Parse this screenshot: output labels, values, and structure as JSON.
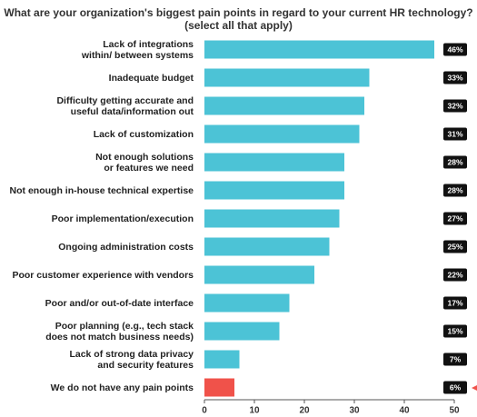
{
  "chart_data": {
    "type": "bar",
    "orientation": "horizontal",
    "title": "What are your organization's biggest pain points in regard to your current HR technology?",
    "subtitle": "(select all that apply)",
    "categories": [
      "Lack of integrations within/ between systems",
      "Inadequate budget",
      "Difficulty getting accurate and useful data/information out",
      "Lack of customization",
      "Not enough solutions or features we need",
      "Not enough in-house technical expertise",
      "Poor implementation/execution",
      "Ongoing administration costs",
      "Poor customer experience with vendors",
      "Poor and/or out-of-date interface",
      "Poor planning (e.g., tech stack does not match business needs)",
      "Lack of strong data privacy and security features",
      "We do not have any pain points"
    ],
    "values": [
      46,
      33,
      32,
      31,
      28,
      28,
      27,
      25,
      22,
      17,
      15,
      7,
      6
    ],
    "value_labels": [
      "46%",
      "33%",
      "32%",
      "31%",
      "28%",
      "28%",
      "27%",
      "25%",
      "22%",
      "17%",
      "15%",
      "7%",
      "6%"
    ],
    "colors": [
      "#4cc3d6",
      "#4cc3d6",
      "#4cc3d6",
      "#4cc3d6",
      "#4cc3d6",
      "#4cc3d6",
      "#4cc3d6",
      "#4cc3d6",
      "#4cc3d6",
      "#4cc3d6",
      "#4cc3d6",
      "#4cc3d6",
      "#f0524a"
    ],
    "xlim": [
      0,
      50
    ],
    "xticks": [
      0,
      10,
      20,
      30,
      40,
      50
    ]
  }
}
